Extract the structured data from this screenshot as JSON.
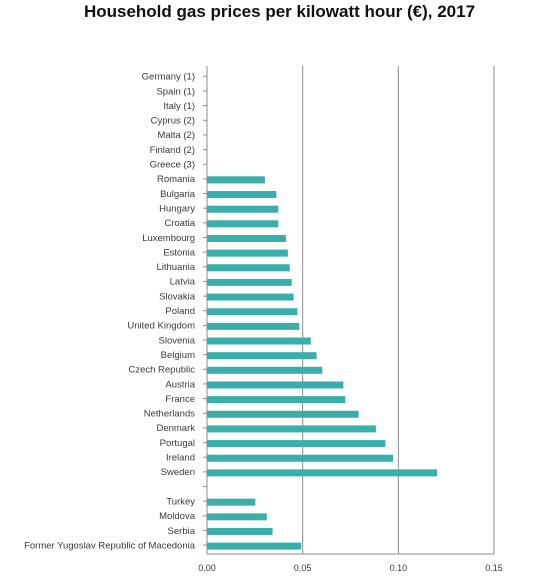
{
  "chart_data": {
    "type": "bar",
    "orientation": "horizontal",
    "title": "Household gas prices per kilowatt hour (€),  2017",
    "xlabel": "",
    "ylabel": "",
    "xlim": [
      0,
      0.15
    ],
    "ticks": [
      "0.00",
      "0.05",
      "0.10",
      "0.15"
    ],
    "tick_values": [
      0,
      0.05,
      0.1,
      0.15
    ],
    "grid": "vertical",
    "bar_color": "#3aaeaa",
    "grid_color": "#8c8c8c",
    "categories": [
      "Germany (1)",
      "Spain (1)",
      "Italy (1)",
      "Cyprus (2)",
      "Malta (2)",
      "Finland (2)",
      "Greece (3)",
      "Romania",
      "Bulgaria",
      "Hungary",
      "Croatia",
      "Luxembourg",
      "Estonia",
      "Lithuania",
      "Latvia",
      "Slovakia",
      "Poland",
      "United Kingdom",
      "Slovenia",
      "Belgium",
      "Czech Republic",
      "Austria",
      "France",
      "Netherlands",
      "Denmark",
      "Portugal",
      "Ireland",
      "Sweden",
      "",
      "Turkey",
      "Moldova",
      "Serbia",
      "Former Yugoslav Republic of Macedonia"
    ],
    "values": [
      null,
      null,
      null,
      null,
      null,
      null,
      null,
      0.03,
      0.036,
      0.037,
      0.037,
      0.041,
      0.042,
      0.043,
      0.044,
      0.045,
      0.047,
      0.048,
      0.054,
      0.057,
      0.06,
      0.071,
      0.072,
      0.079,
      0.088,
      0.093,
      0.097,
      0.12,
      null,
      0.025,
      0.031,
      0.034,
      0.049
    ]
  }
}
